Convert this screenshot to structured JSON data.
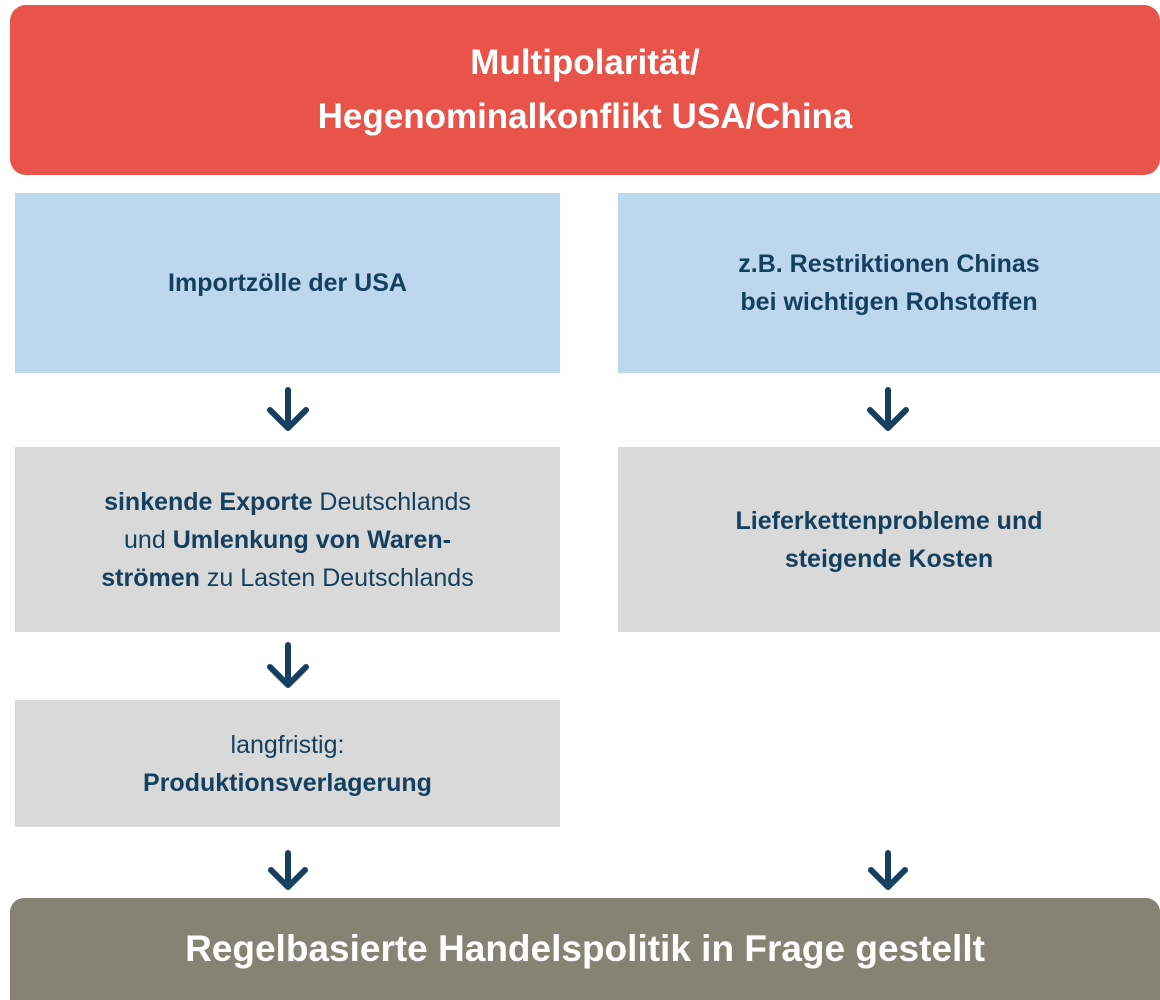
{
  "header": {
    "lines": [
      "Multipolarität/",
      "Hegenominalkonflikt USA/China"
    ]
  },
  "boxes": [
    {
      "lines": [
        [
          {
            "text": "Importzölle der USA",
            "bold": true
          }
        ]
      ]
    },
    {
      "lines": [
        [
          {
            "text": "z.B. Restriktionen Chinas",
            "bold": true
          }
        ],
        [
          {
            "text": "bei wichtigen Rohstoffen",
            "bold": true
          }
        ]
      ]
    },
    {
      "lines": [
        [
          {
            "text": "sinkende Exporte",
            "bold": true
          },
          {
            "text": " Deutschlands",
            "bold": false
          }
        ],
        [
          {
            "text": "und ",
            "bold": false
          },
          {
            "text": "Umlenkung von Waren-",
            "bold": true
          }
        ],
        [
          {
            "text": "strömen",
            "bold": true
          },
          {
            "text": " zu Lasten Deutschlands",
            "bold": false
          }
        ]
      ]
    },
    {
      "lines": [
        [
          {
            "text": "Lieferkettenprobleme und",
            "bold": true
          }
        ],
        [
          {
            "text": "steigende Kosten",
            "bold": true
          }
        ]
      ]
    },
    {
      "lines": [
        [
          {
            "text": "langfristig:",
            "bold": false
          }
        ],
        [
          {
            "text": "Produktionsverlagerung",
            "bold": true
          }
        ]
      ]
    }
  ],
  "footer": {
    "title": "Regelbasierte Handelspolitik in Frage gestellt"
  }
}
